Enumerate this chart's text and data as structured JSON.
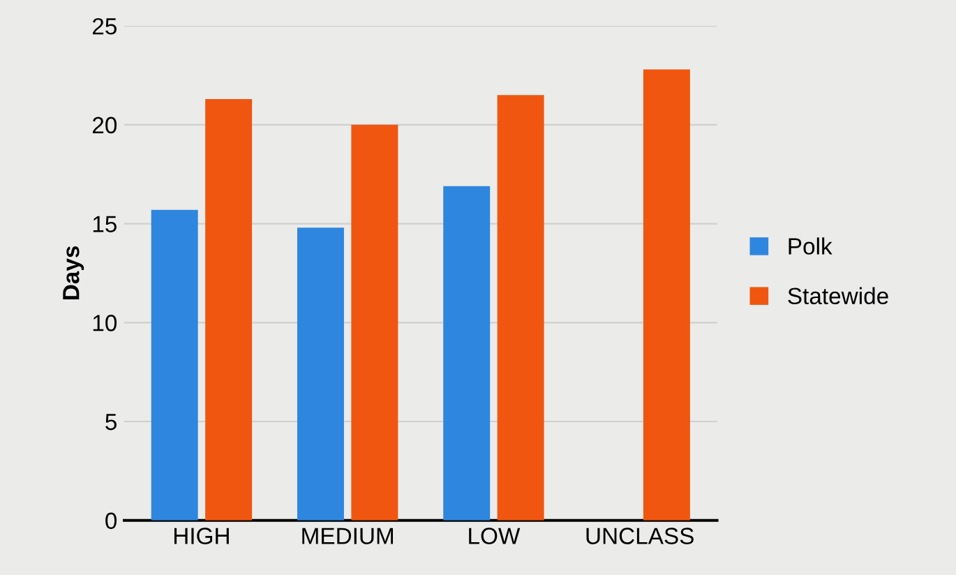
{
  "chart_data": {
    "type": "bar",
    "ylabel": "Days",
    "categories": [
      "HIGH",
      "MEDIUM",
      "LOW",
      "UNCLASS"
    ],
    "series": [
      {
        "name": "Polk",
        "color": "#2e86de",
        "values": [
          15.7,
          14.8,
          16.9,
          null
        ]
      },
      {
        "name": "Statewide",
        "color": "#f0560f",
        "values": [
          21.3,
          20.0,
          21.5,
          22.8
        ]
      }
    ],
    "ylim": [
      0,
      25
    ],
    "yticks": [
      0,
      5,
      10,
      15,
      20,
      25
    ],
    "grid": "y",
    "legend": "right"
  }
}
